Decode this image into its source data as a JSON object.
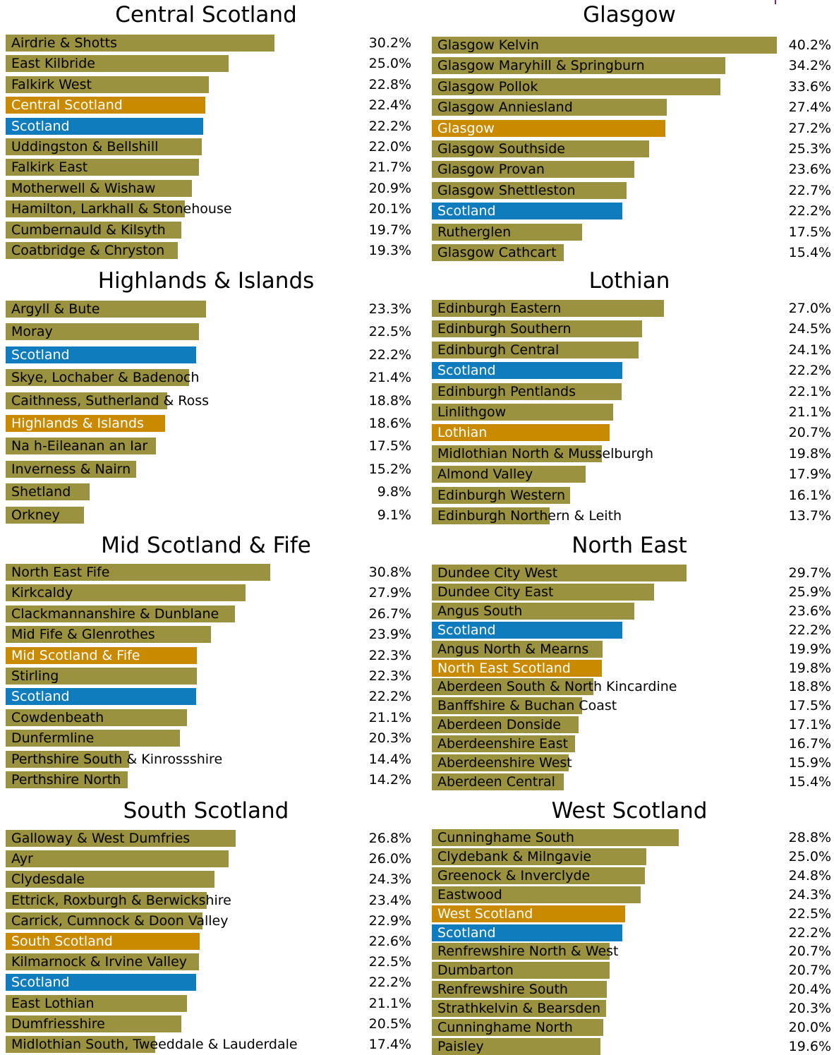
{
  "colors": {
    "region": "#9b9240",
    "highlight": "#c98a00",
    "scotland": "#0f7cbd",
    "corner": "#6b2a8c"
  },
  "chart_data": [
    {
      "type": "bar",
      "title": "Central Scotland",
      "categories": [
        "Airdrie & Shotts",
        "East Kilbride",
        "Falkirk West",
        "Central Scotland",
        "Scotland",
        "Uddingston & Bellshill",
        "Falkirk East",
        "Motherwell & Wishaw",
        "Hamilton, Larkhall & Stonehouse",
        "Cumbernauld & Kilsyth",
        "Coatbridge & Chryston"
      ],
      "values": [
        30.2,
        25.0,
        22.8,
        22.4,
        22.2,
        22.0,
        21.7,
        20.9,
        20.1,
        19.7,
        19.3
      ],
      "labels": [
        "30.2%",
        "25.0%",
        "22.8%",
        "22.4%",
        "22.2%",
        "22.0%",
        "21.7%",
        "20.9%",
        "20.1%",
        "19.7%",
        "19.3%"
      ],
      "highlight": [
        "region",
        "region",
        "region",
        "highlight",
        "scotland",
        "region",
        "region",
        "region",
        "region",
        "region",
        "region"
      ]
    },
    {
      "type": "bar",
      "title": "Glasgow",
      "categories": [
        "Glasgow Kelvin",
        "Glasgow Maryhill & Springburn",
        "Glasgow Pollok",
        "Glasgow Anniesland",
        "Glasgow",
        "Glasgow Southside",
        "Glasgow Provan",
        "Glasgow Shettleston",
        "Scotland",
        "Rutherglen",
        "Glasgow Cathcart"
      ],
      "values": [
        40.2,
        34.2,
        33.6,
        27.4,
        27.2,
        25.3,
        23.6,
        22.7,
        22.2,
        17.5,
        15.4
      ],
      "labels": [
        "40.2%",
        "34.2%",
        "33.6%",
        "27.4%",
        "27.2%",
        "25.3%",
        "23.6%",
        "22.7%",
        "22.2%",
        "17.5%",
        "15.4%"
      ],
      "highlight": [
        "region",
        "region",
        "region",
        "region",
        "highlight",
        "region",
        "region",
        "region",
        "scotland",
        "region",
        "region"
      ]
    },
    {
      "type": "bar",
      "title": "Highlands & Islands",
      "categories": [
        "Argyll & Bute",
        "Moray",
        "Scotland",
        "Skye, Lochaber & Badenoch",
        "Caithness, Sutherland & Ross",
        "Highlands & Islands",
        "Na h-Eileanan an Iar",
        "Inverness & Nairn",
        "Shetland",
        "Orkney"
      ],
      "values": [
        23.3,
        22.5,
        22.2,
        21.4,
        18.8,
        18.6,
        17.5,
        15.2,
        9.8,
        9.1
      ],
      "labels": [
        "23.3%",
        "22.5%",
        "22.2%",
        "21.4%",
        "18.8%",
        "18.6%",
        "17.5%",
        "15.2%",
        "9.8%",
        "9.1%"
      ],
      "highlight": [
        "region",
        "region",
        "scotland",
        "region",
        "region",
        "highlight",
        "region",
        "region",
        "region",
        "region"
      ]
    },
    {
      "type": "bar",
      "title": "Lothian",
      "categories": [
        "Edinburgh Eastern",
        "Edinburgh Southern",
        "Edinburgh Central",
        "Scotland",
        "Edinburgh Pentlands",
        "Linlithgow",
        "Lothian",
        "Midlothian North & Musselburgh",
        "Almond Valley",
        "Edinburgh Western",
        "Edinburgh Northern & Leith"
      ],
      "values": [
        27.0,
        24.5,
        24.1,
        22.2,
        22.1,
        21.1,
        20.7,
        19.8,
        17.9,
        16.1,
        13.7
      ],
      "labels": [
        "27.0%",
        "24.5%",
        "24.1%",
        "22.2%",
        "22.1%",
        "21.1%",
        "20.7%",
        "19.8%",
        "17.9%",
        "16.1%",
        "13.7%"
      ],
      "highlight": [
        "region",
        "region",
        "region",
        "scotland",
        "region",
        "region",
        "highlight",
        "region",
        "region",
        "region",
        "region"
      ]
    },
    {
      "type": "bar",
      "title": "Mid Scotland & Fife",
      "categories": [
        "North East Fife",
        "Kirkcaldy",
        "Clackmannanshire & Dunblane",
        "Mid Fife & Glenrothes",
        "Mid Scotland & Fife",
        "Stirling",
        "Scotland",
        "Cowdenbeath",
        "Dunfermline",
        "Perthshire South & Kinrossshire",
        "Perthshire North"
      ],
      "values": [
        30.8,
        27.9,
        26.7,
        23.9,
        22.3,
        22.3,
        22.2,
        21.1,
        20.3,
        14.4,
        14.2
      ],
      "labels": [
        "30.8%",
        "27.9%",
        "26.7%",
        "23.9%",
        "22.3%",
        "22.3%",
        "22.2%",
        "21.1%",
        "20.3%",
        "14.4%",
        "14.2%"
      ],
      "highlight": [
        "region",
        "region",
        "region",
        "region",
        "highlight",
        "region",
        "scotland",
        "region",
        "region",
        "region",
        "region"
      ]
    },
    {
      "type": "bar",
      "title": "North East",
      "categories": [
        "Dundee City West",
        "Dundee City East",
        "Angus South",
        "Scotland",
        "Angus North & Mearns",
        "North East Scotland",
        "Aberdeen South & North Kincardine",
        "Banffshire & Buchan Coast",
        "Aberdeen Donside",
        "Aberdeenshire East",
        "Aberdeenshire West",
        "Aberdeen Central"
      ],
      "values": [
        29.7,
        25.9,
        23.6,
        22.2,
        19.9,
        19.8,
        18.8,
        17.5,
        17.1,
        16.7,
        15.9,
        15.4
      ],
      "labels": [
        "29.7%",
        "25.9%",
        "23.6%",
        "22.2%",
        "19.9%",
        "19.8%",
        "18.8%",
        "17.5%",
        "17.1%",
        "16.7%",
        "15.9%",
        "15.4%"
      ],
      "highlight": [
        "region",
        "region",
        "region",
        "scotland",
        "region",
        "highlight",
        "region",
        "region",
        "region",
        "region",
        "region",
        "region"
      ]
    },
    {
      "type": "bar",
      "title": "South Scotland",
      "categories": [
        "Galloway & West Dumfries",
        "Ayr",
        "Clydesdale",
        "Ettrick, Roxburgh & Berwickshire",
        "Carrick, Cumnock & Doon Valley",
        "South Scotland",
        "Kilmarnock & Irvine Valley",
        "Scotland",
        "East Lothian",
        "Dumfriesshire",
        "Midlothian South, Tweeddale & Lauderdale"
      ],
      "values": [
        26.8,
        26.0,
        24.3,
        23.4,
        22.9,
        22.6,
        22.5,
        22.2,
        21.1,
        20.5,
        17.4
      ],
      "labels": [
        "26.8%",
        "26.0%",
        "24.3%",
        "23.4%",
        "22.9%",
        "22.6%",
        "22.5%",
        "22.2%",
        "21.1%",
        "20.5%",
        "17.4%"
      ],
      "highlight": [
        "region",
        "region",
        "region",
        "region",
        "region",
        "highlight",
        "region",
        "scotland",
        "region",
        "region",
        "region"
      ]
    },
    {
      "type": "bar",
      "title": "West Scotland",
      "categories": [
        "Cunninghame South",
        "Clydebank & Milngavie",
        "Greenock & Inverclyde",
        "Eastwood",
        "West Scotland",
        "Scotland",
        "Renfrewshire North & West",
        "Dumbarton",
        "Renfrewshire South",
        "Strathkelvin & Bearsden",
        "Cunninghame North",
        "Paisley"
      ],
      "values": [
        28.8,
        25.0,
        24.8,
        24.3,
        22.5,
        22.2,
        20.7,
        20.7,
        20.4,
        20.3,
        20.0,
        19.6
      ],
      "labels": [
        "28.8%",
        "25.0%",
        "24.8%",
        "24.3%",
        "22.5%",
        "22.2%",
        "20.7%",
        "20.7%",
        "20.4%",
        "20.3%",
        "20.0%",
        "19.6%"
      ],
      "highlight": [
        "region",
        "region",
        "region",
        "region",
        "highlight",
        "scotland",
        "region",
        "region",
        "region",
        "region",
        "region",
        "region"
      ]
    }
  ]
}
